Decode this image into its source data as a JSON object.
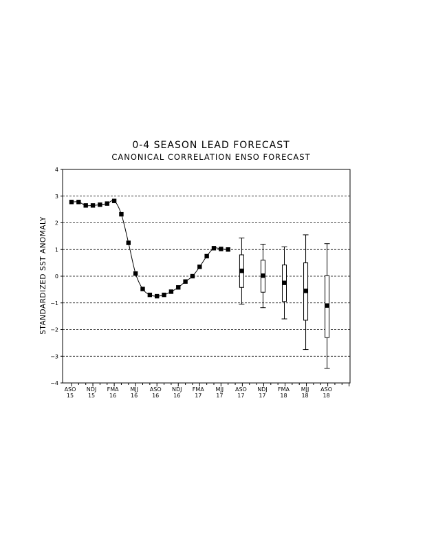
{
  "chart_data": {
    "type": "line",
    "title": "0-4 SEASON LEAD FORECAST",
    "subtitle": "CANONICAL CORRELATION ENSO FORECAST",
    "ylabel": "STANDARDIZED SST ANOMALY",
    "ylim": [
      -4,
      4
    ],
    "yticks": [
      -4,
      -3,
      -2,
      -1,
      0,
      1,
      2,
      3,
      4
    ],
    "grid": "dashed horizontal",
    "x_tick_labels": [
      {
        "season": "ASO",
        "year": "15"
      },
      {
        "season": "NDJ",
        "year": "15"
      },
      {
        "season": "FMA",
        "year": "16"
      },
      {
        "season": "MJJ",
        "year": "16"
      },
      {
        "season": "ASO",
        "year": "16"
      },
      {
        "season": "NDJ",
        "year": "16"
      },
      {
        "season": "FMA",
        "year": "17"
      },
      {
        "season": "MJJ",
        "year": "17"
      },
      {
        "season": "ASO",
        "year": "17"
      },
      {
        "season": "NDJ",
        "year": "17"
      },
      {
        "season": "FMA",
        "year": "18"
      },
      {
        "season": "MJJ",
        "year": "18"
      },
      {
        "season": "ASO",
        "year": "18"
      }
    ],
    "observed": {
      "x_index": [
        0,
        1,
        2,
        3,
        4,
        5,
        6,
        7,
        8,
        9,
        10,
        11,
        12,
        13,
        14,
        15,
        16,
        17,
        18,
        19,
        20,
        21,
        22
      ],
      "values": [
        2.78,
        2.78,
        2.65,
        2.65,
        2.68,
        2.72,
        2.82,
        2.32,
        1.25,
        0.1,
        -0.48,
        -0.7,
        -0.75,
        -0.7,
        -0.58,
        -0.42,
        -0.2,
        0.0,
        0.35,
        0.75,
        1.05,
        1.02,
        1.0
      ]
    },
    "forecast": [
      {
        "x_index": 24,
        "value": 0.2,
        "box_low": -0.42,
        "box_high": 0.8,
        "whisker_low": -1.05,
        "whisker_high": 1.43
      },
      {
        "x_index": 27,
        "value": 0.02,
        "box_low": -0.6,
        "box_high": 0.6,
        "whisker_low": -1.18,
        "whisker_high": 1.2
      },
      {
        "x_index": 30,
        "value": -0.25,
        "box_low": -0.95,
        "box_high": 0.42,
        "whisker_low": -1.6,
        "whisker_high": 1.1
      },
      {
        "x_index": 33,
        "value": -0.55,
        "box_low": -1.65,
        "box_high": 0.5,
        "whisker_low": -2.75,
        "whisker_high": 1.55
      },
      {
        "x_index": 36,
        "value": -1.1,
        "box_low": -2.3,
        "box_high": 0.02,
        "whisker_low": -3.45,
        "whisker_high": 1.22
      }
    ]
  }
}
